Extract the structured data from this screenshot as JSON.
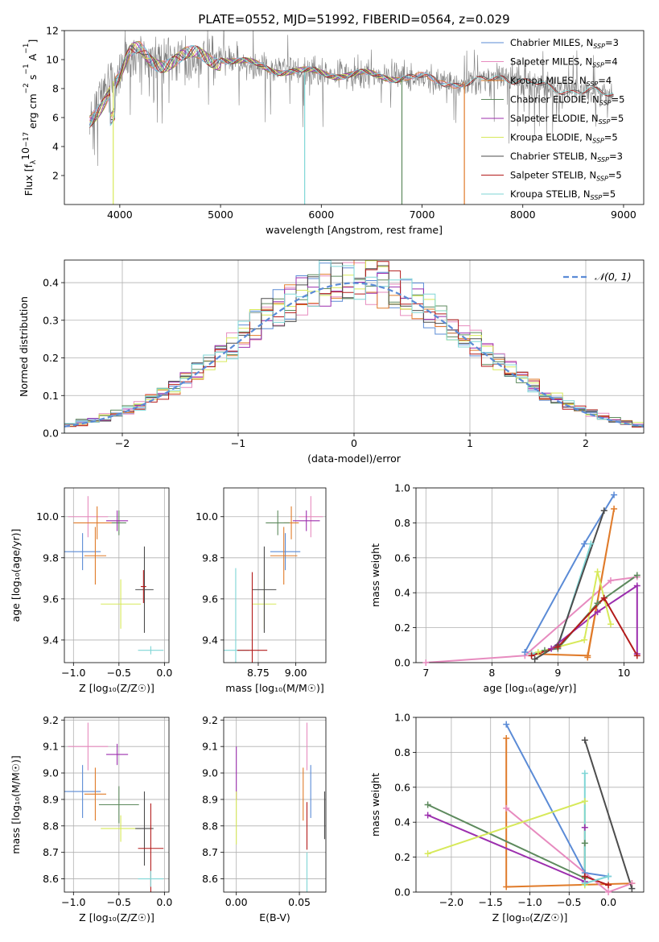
{
  "figure_title": "PLATE=0552, MJD=51992, FIBERID=0564, z=0.029",
  "colors": {
    "Chabrier MILES": "#5b8bd6",
    "Salpeter MILES": "#e78bbf",
    "Kroupa MILES": "#e07b2a",
    "Chabrier ELODIE": "#5d8a5d",
    "Salpeter ELODIE": "#9c2fae",
    "Kroupa ELODIE": "#d7e95a",
    "Chabrier STELIB": "#4d4d4d",
    "Salpeter STELIB": "#b31b1b",
    "Kroupa STELIB": "#7fd6d6",
    "gaussian": "#5b8bd6",
    "observed": "#808080"
  },
  "chart_data": [
    {
      "id": "spectrum",
      "type": "line",
      "title": "PLATE=0552, MJD=51992, FIBERID=0564, z=0.029",
      "xlabel": "wavelength [Angstrom, rest frame]",
      "ylabel": "Flux [f",
      "ylabel_parts": [
        "Flux [f",
        "λ",
        "10",
        "−17",
        " erg cm",
        "−2",
        " s",
        "−1",
        " A",
        "−1",
        "]"
      ],
      "xlim": [
        3450,
        9200
      ],
      "ylim": [
        0,
        12
      ],
      "xticks": [
        4000,
        5000,
        6000,
        7000,
        8000,
        9000
      ],
      "yticks": [
        2,
        4,
        6,
        8,
        10,
        12
      ],
      "legend_position": "top-right",
      "legend": [
        {
          "name": "Chabrier MILES, N",
          "sub": "SSP",
          "tail": "=3",
          "key": "Chabrier MILES"
        },
        {
          "name": "Salpeter MILES, N",
          "sub": "SSP",
          "tail": "=4",
          "key": "Salpeter MILES"
        },
        {
          "name": "Kroupa MILES, N",
          "sub": "SSP",
          "tail": "=4",
          "key": "Kroupa MILES"
        },
        {
          "name": "Chabrier ELODIE, N",
          "sub": "SSP",
          "tail": "=5",
          "key": "Chabrier ELODIE"
        },
        {
          "name": "Salpeter ELODIE, N",
          "sub": "SSP",
          "tail": "=5",
          "key": "Salpeter ELODIE"
        },
        {
          "name": "Kroupa ELODIE, N",
          "sub": "SSP",
          "tail": "=5",
          "key": "Kroupa ELODIE"
        },
        {
          "name": "Chabrier STELIB, N",
          "sub": "SSP",
          "tail": "=3",
          "key": "Chabrier STELIB"
        },
        {
          "name": "Salpeter STELIB, N",
          "sub": "SSP",
          "tail": "=5",
          "key": "Salpeter STELIB"
        },
        {
          "name": "Kroupa STELIB, N",
          "sub": "SSP",
          "tail": "=5",
          "key": "Kroupa STELIB"
        }
      ],
      "continuum": {
        "x": [
          3700,
          3900,
          4000,
          4100,
          4200,
          4300,
          4500,
          4700,
          5000,
          5200,
          5500,
          5800,
          6000,
          6200,
          6500,
          6800,
          7000,
          7200,
          7500,
          7800,
          8000,
          8200,
          8500,
          8800,
          8900
        ],
        "y": [
          5.6,
          8.3,
          8.9,
          10.1,
          10.4,
          10.0,
          10.1,
          10.0,
          10.2,
          9.8,
          9.4,
          9.1,
          9.1,
          9.0,
          8.9,
          8.8,
          8.7,
          8.5,
          8.3,
          8.9,
          8.5,
          8.1,
          7.9,
          7.6,
          7.6
        ]
      },
      "model_wavelength_max": {
        "MILES": 7420,
        "ELODIE": 6800,
        "STELIB": 8900
      },
      "dips": [
        {
          "x": 3935,
          "y": 0.0
        },
        {
          "x": 5835,
          "y": 0.0
        },
        {
          "x": 6800,
          "y": 0.0
        },
        {
          "x": 7420,
          "y": 0.0
        }
      ]
    },
    {
      "id": "residuals",
      "type": "step",
      "xlabel": "(data-model)/error",
      "ylabel": "Normed distribution",
      "xlim": [
        -2.5,
        2.5
      ],
      "ylim": [
        0,
        0.46
      ],
      "xticks": [
        -2,
        -1,
        0,
        1,
        2
      ],
      "yticks": [
        0.0,
        0.1,
        0.2,
        0.3,
        0.4
      ],
      "legend_position": "top-right",
      "gaussian_label": "𝒩(0, 1)",
      "gaussian": {
        "mean": 0,
        "sigma": 1
      },
      "bin_width": 0.1
    },
    {
      "id": "age-vs-Z",
      "type": "errorbar",
      "xlabel": "Z [log₁₀(Z/Z☉)]",
      "ylabel": "age  [log₁₀(age/yr)]",
      "xlim": [
        -1.1,
        0.05
      ],
      "ylim": [
        9.29,
        10.14
      ],
      "xticks": [
        -1.0,
        -0.5,
        0.0
      ],
      "yticks": [
        9.4,
        9.6,
        9.8,
        10.0
      ],
      "points": [
        {
          "key": "Salpeter MILES",
          "x": -0.84,
          "xerr": 0.22,
          "y": 10.0,
          "yerr": 0.1
        },
        {
          "key": "Kroupa MILES",
          "x": -0.74,
          "xerr": 0.26,
          "y": 9.97,
          "yerr": 0.08
        },
        {
          "key": "Chabrier ELODIE",
          "x": -0.5,
          "xerr": 0.08,
          "y": 9.97,
          "yerr": 0.06
        },
        {
          "key": "Salpeter ELODIE",
          "x": -0.52,
          "xerr": 0.12,
          "y": 9.98,
          "yerr": 0.05
        },
        {
          "key": "Chabrier MILES",
          "x": -0.9,
          "xerr": 0.2,
          "y": 9.83,
          "yerr": 0.09
        },
        {
          "key": "Kroupa MILES",
          "x": -0.76,
          "xerr": 0.12,
          "y": 9.81,
          "yerr": 0.14
        },
        {
          "key": "Kroupa ELODIE",
          "x": -0.48,
          "xerr": 0.22,
          "y": 9.575,
          "yerr": 0.12
        },
        {
          "key": "Chabrier STELIB",
          "x": -0.22,
          "xerr": 0.1,
          "y": 9.645,
          "yerr": 0.21
        },
        {
          "key": "Kroupa STELIB",
          "x": -0.15,
          "xerr": 0.14,
          "y": 9.35,
          "yerr": 0.02
        },
        {
          "key": "Salpeter STELIB",
          "x": -0.23,
          "xerr": 0.03,
          "y": 9.66,
          "yerr": 0.08
        }
      ]
    },
    {
      "id": "age-vs-mass",
      "type": "errorbar",
      "xlabel": "mass [log₁₀(M/M☉)]",
      "ylabel": "",
      "xlim": [
        8.52,
        9.2
      ],
      "ylim": [
        9.29,
        10.14
      ],
      "xticks": [
        8.75,
        9.0
      ],
      "yticks": [
        9.4,
        9.6,
        9.8,
        10.0
      ],
      "points": [
        {
          "key": "Salpeter MILES",
          "x": 9.1,
          "xerr": 0.08,
          "y": 10.0,
          "yerr": 0.1
        },
        {
          "key": "Kroupa MILES",
          "x": 8.97,
          "xerr": 0.05,
          "y": 9.97,
          "yerr": 0.08
        },
        {
          "key": "Chabrier ELODIE",
          "x": 8.88,
          "xerr": 0.08,
          "y": 9.97,
          "yerr": 0.06
        },
        {
          "key": "Salpeter ELODIE",
          "x": 9.07,
          "xerr": 0.09,
          "y": 9.98,
          "yerr": 0.05
        },
        {
          "key": "Chabrier MILES",
          "x": 8.93,
          "xerr": 0.1,
          "y": 9.83,
          "yerr": 0.09
        },
        {
          "key": "Kroupa MILES",
          "x": 8.92,
          "xerr": 0.09,
          "y": 9.81,
          "yerr": 0.14
        },
        {
          "key": "Kroupa ELODIE",
          "x": 8.79,
          "xerr": 0.08,
          "y": 9.575,
          "yerr": 0.12
        },
        {
          "key": "Chabrier STELIB",
          "x": 8.79,
          "xerr": 0.08,
          "y": 9.645,
          "yerr": 0.21
        },
        {
          "key": "Kroupa STELIB",
          "x": 8.6,
          "xerr": 0.09,
          "y": 9.35,
          "yerr": 0.4
        },
        {
          "key": "Salpeter STELIB",
          "x": 8.71,
          "xerr": 0.1,
          "y": 9.35,
          "yerr": 0.38
        }
      ]
    },
    {
      "id": "weight-vs-age",
      "type": "line",
      "xlabel": "age  [log₁₀(age/yr)]",
      "ylabel": "mass weight",
      "xlim": [
        6.85,
        10.3
      ],
      "ylim": [
        0,
        1.0
      ],
      "xticks": [
        7,
        8,
        9,
        10
      ],
      "yticks": [
        0.0,
        0.2,
        0.4,
        0.6,
        0.8,
        1.0
      ],
      "series": [
        {
          "key": "Salpeter MILES",
          "x": [
            7.0,
            8.5,
            9.8,
            10.2
          ],
          "y": [
            0.0,
            0.04,
            0.47,
            0.49
          ]
        },
        {
          "key": "Kroupa MILES",
          "x": [
            8.6,
            9.45,
            9.85,
            9.45
          ],
          "y": [
            0.05,
            0.04,
            0.88,
            0.03
          ]
        },
        {
          "key": "Chabrier MILES",
          "x": [
            8.5,
            9.4,
            9.85
          ],
          "y": [
            0.06,
            0.68,
            0.96
          ]
        },
        {
          "key": "Kroupa STELIB",
          "x": [
            8.6,
            9.0,
            9.5
          ],
          "y": [
            0.05,
            0.09,
            0.68
          ]
        },
        {
          "key": "Chabrier STELIB",
          "x": [
            8.65,
            9.0,
            9.7
          ],
          "y": [
            0.02,
            0.1,
            0.87
          ]
        },
        {
          "key": "Chabrier ELODIE",
          "x": [
            8.8,
            9.0,
            9.6,
            10.2
          ],
          "y": [
            0.07,
            0.08,
            0.34,
            0.5
          ]
        },
        {
          "key": "Salpeter ELODIE",
          "x": [
            8.9,
            9.6,
            10.2,
            10.2
          ],
          "y": [
            0.08,
            0.29,
            0.44,
            0.05
          ]
        },
        {
          "key": "Kroupa ELODIE",
          "x": [
            8.7,
            9.4,
            9.6,
            9.8
          ],
          "y": [
            0.06,
            0.13,
            0.52,
            0.22
          ]
        },
        {
          "key": "Salpeter STELIB",
          "x": [
            8.6,
            9.0,
            9.7,
            10.2
          ],
          "y": [
            0.04,
            0.09,
            0.37,
            0.04
          ]
        }
      ]
    },
    {
      "id": "mass-vs-Z",
      "type": "errorbar",
      "xlabel": "Z [log₁₀(Z/Z☉)]",
      "ylabel": "mass [log₁₀(M/M☉)]",
      "xlim": [
        -1.1,
        0.05
      ],
      "ylim": [
        8.55,
        9.21
      ],
      "xticks": [
        -1.0,
        -0.5,
        0.0
      ],
      "yticks": [
        8.6,
        8.7,
        8.8,
        8.9,
        9.0,
        9.1,
        9.2
      ],
      "points": [
        {
          "key": "Salpeter MILES",
          "x": -0.84,
          "xerr": 0.22,
          "y": 9.1,
          "yerr": 0.09
        },
        {
          "key": "Salpeter ELODIE",
          "x": -0.52,
          "xerr": 0.12,
          "y": 9.07,
          "yerr": 0.04
        },
        {
          "key": "Chabrier MILES",
          "x": -0.9,
          "xerr": 0.2,
          "y": 8.93,
          "yerr": 0.1
        },
        {
          "key": "Kroupa MILES",
          "x": -0.76,
          "xerr": 0.12,
          "y": 8.92,
          "yerr": 0.1
        },
        {
          "key": "Chabrier ELODIE",
          "x": -0.5,
          "xerr": 0.22,
          "y": 8.88,
          "yerr": 0.07
        },
        {
          "key": "Kroupa ELODIE",
          "x": -0.48,
          "xerr": 0.22,
          "y": 8.79,
          "yerr": 0.05
        },
        {
          "key": "Chabrier STELIB",
          "x": -0.22,
          "xerr": 0.1,
          "y": 8.79,
          "yerr": 0.14
        },
        {
          "key": "Salpeter STELIB",
          "x": -0.15,
          "xerr": 0.14,
          "y": 8.715,
          "yerr": 0.17
        },
        {
          "key": "Kroupa STELIB",
          "x": -0.15,
          "xerr": 0.14,
          "y": 8.6,
          "yerr": 0.03
        }
      ]
    },
    {
      "id": "mass-vs-EBV",
      "type": "errorbar",
      "xlabel": "E(B-V)",
      "ylabel": "",
      "xlim": [
        -0.01,
        0.071
      ],
      "ylim": [
        8.55,
        9.21
      ],
      "xticks": [
        0.0,
        0.05
      ],
      "yticks": [
        8.6,
        8.7,
        8.8,
        8.9,
        9.0,
        9.1,
        9.2
      ],
      "points": [
        {
          "key": "Salpeter ELODIE",
          "x": 0.0,
          "xerr": 0,
          "y": 9.0,
          "yerr": 0.1
        },
        {
          "key": "Kroupa ELODIE",
          "x": 0.0,
          "xerr": 0,
          "y": 8.83,
          "yerr": 0.1
        },
        {
          "key": "Salpeter MILES",
          "x": 0.056,
          "xerr": 0,
          "y": 9.1,
          "yerr": 0.09
        },
        {
          "key": "Kroupa MILES",
          "x": 0.053,
          "xerr": 0,
          "y": 8.92,
          "yerr": 0.1
        },
        {
          "key": "Chabrier MILES",
          "x": 0.059,
          "xerr": 0,
          "y": 8.93,
          "yerr": 0.1
        },
        {
          "key": "Salpeter STELIB",
          "x": 0.056,
          "xerr": 0,
          "y": 8.8,
          "yerr": 0.09
        },
        {
          "key": "Kroupa STELIB",
          "x": 0.056,
          "xerr": 0,
          "y": 8.6,
          "yerr": 0.1
        },
        {
          "key": "Chabrier STELIB",
          "x": 0.07,
          "xerr": 0,
          "y": 8.84,
          "yerr": 0.09
        }
      ]
    },
    {
      "id": "weight-vs-Z",
      "type": "line",
      "xlabel": "Z [log₁₀(Z/Z☉)]",
      "ylabel": "mass weight",
      "xlim": [
        -2.45,
        0.45
      ],
      "ylim": [
        0,
        1.0
      ],
      "xticks": [
        -2.0,
        -1.5,
        -1.0,
        -0.5,
        0.0
      ],
      "yticks": [
        0.0,
        0.2,
        0.4,
        0.6,
        0.8,
        1.0
      ],
      "series": [
        {
          "key": "Chabrier MILES",
          "x": [
            -1.3,
            -0.3,
            0.0
          ],
          "y": [
            0.96,
            0.11,
            0.09
          ]
        },
        {
          "key": "Kroupa MILES",
          "x": [
            -1.3,
            -1.3,
            0.3
          ],
          "y": [
            0.88,
            0.03,
            0.05
          ]
        },
        {
          "key": "Salpeter MILES",
          "x": [
            -1.3,
            0.0,
            0.3
          ],
          "y": [
            0.48,
            0.0,
            0.05
          ]
        },
        {
          "key": "Chabrier ELODIE",
          "x": [
            -2.3,
            -0.3,
            -0.3
          ],
          "y": [
            0.5,
            0.08,
            0.28
          ]
        },
        {
          "key": "Salpeter ELODIE",
          "x": [
            -2.3,
            -0.3,
            -0.3
          ],
          "y": [
            0.44,
            0.06,
            0.37
          ]
        },
        {
          "key": "Kroupa ELODIE",
          "x": [
            -2.3,
            -0.3,
            -0.3
          ],
          "y": [
            0.22,
            0.52,
            0.04
          ]
        },
        {
          "key": "Chabrier STELIB",
          "x": [
            -0.3,
            0.3
          ],
          "y": [
            0.87,
            0.02
          ]
        },
        {
          "key": "Salpeter STELIB",
          "x": [
            -0.3,
            0.0
          ],
          "y": [
            0.09,
            0.04
          ]
        },
        {
          "key": "Kroupa STELIB",
          "x": [
            -0.3,
            -0.3,
            0.0
          ],
          "y": [
            0.68,
            0.05,
            0.09
          ]
        }
      ]
    }
  ]
}
